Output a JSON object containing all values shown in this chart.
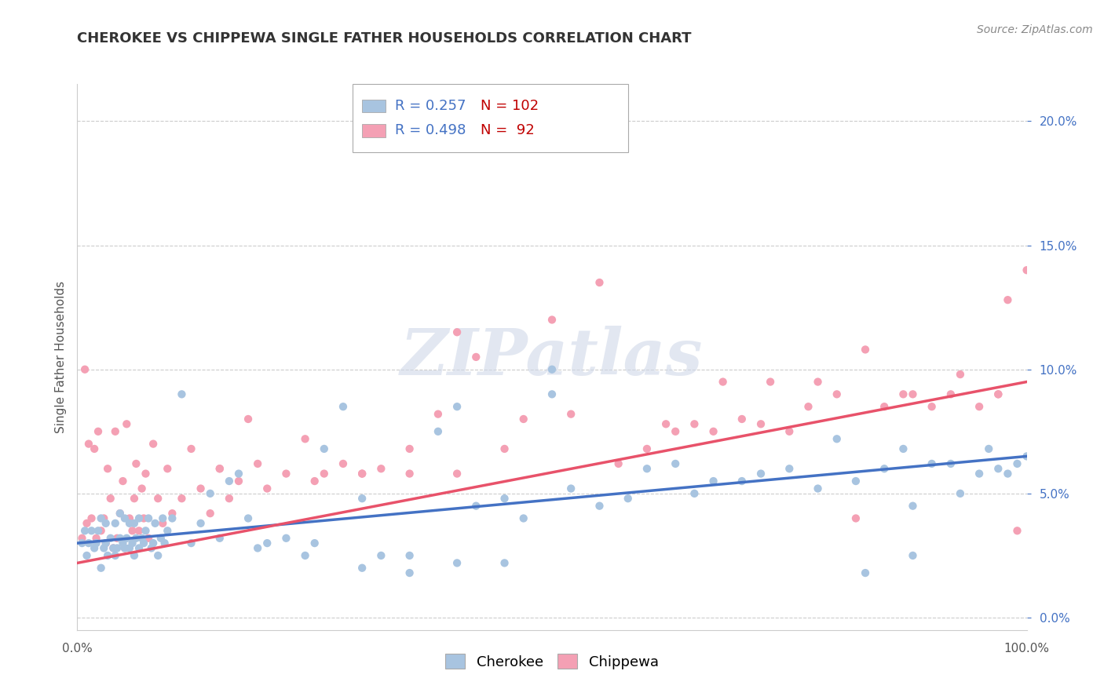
{
  "title": "CHEROKEE VS CHIPPEWA SINGLE FATHER HOUSEHOLDS CORRELATION CHART",
  "source": "Source: ZipAtlas.com",
  "ylabel": "Single Father Households",
  "xlim": [
    0,
    1
  ],
  "ylim": [
    -0.005,
    0.215
  ],
  "ytick_values": [
    0.0,
    0.05,
    0.1,
    0.15,
    0.2
  ],
  "cherokee_color": "#a8c4e0",
  "chippewa_color": "#f4a0b4",
  "cherokee_line_color": "#4472c4",
  "chippewa_line_color": "#e8526a",
  "cherokee_R": 0.257,
  "cherokee_N": 102,
  "chippewa_R": 0.498,
  "chippewa_N": 92,
  "watermark": "ZIPatlas",
  "title_color": "#333333",
  "legend_R_color": "#4472c4",
  "legend_N_color": "#c00000",
  "cherokee_scatter_x": [
    0.005,
    0.008,
    0.01,
    0.012,
    0.015,
    0.018,
    0.02,
    0.022,
    0.025,
    0.025,
    0.028,
    0.03,
    0.03,
    0.032,
    0.035,
    0.038,
    0.04,
    0.04,
    0.042,
    0.045,
    0.045,
    0.048,
    0.05,
    0.05,
    0.052,
    0.055,
    0.055,
    0.058,
    0.06,
    0.06,
    0.062,
    0.065,
    0.065,
    0.068,
    0.07,
    0.072,
    0.075,
    0.078,
    0.08,
    0.082,
    0.085,
    0.088,
    0.09,
    0.092,
    0.095,
    0.1,
    0.11,
    0.12,
    0.13,
    0.14,
    0.15,
    0.16,
    0.17,
    0.18,
    0.19,
    0.2,
    0.22,
    0.24,
    0.26,
    0.28,
    0.3,
    0.32,
    0.35,
    0.38,
    0.4,
    0.42,
    0.45,
    0.47,
    0.5,
    0.52,
    0.55,
    0.58,
    0.6,
    0.63,
    0.65,
    0.67,
    0.7,
    0.72,
    0.75,
    0.78,
    0.8,
    0.82,
    0.85,
    0.87,
    0.88,
    0.9,
    0.92,
    0.93,
    0.95,
    0.96,
    0.97,
    0.98,
    0.99,
    1.0,
    0.83,
    0.88,
    0.5,
    0.25,
    0.3,
    0.35,
    0.4,
    0.45
  ],
  "cherokee_scatter_y": [
    0.03,
    0.035,
    0.025,
    0.03,
    0.035,
    0.028,
    0.03,
    0.035,
    0.02,
    0.04,
    0.028,
    0.03,
    0.038,
    0.025,
    0.032,
    0.028,
    0.025,
    0.038,
    0.028,
    0.032,
    0.042,
    0.03,
    0.028,
    0.04,
    0.032,
    0.028,
    0.038,
    0.03,
    0.025,
    0.038,
    0.032,
    0.028,
    0.04,
    0.032,
    0.03,
    0.035,
    0.04,
    0.028,
    0.03,
    0.038,
    0.025,
    0.032,
    0.04,
    0.03,
    0.035,
    0.04,
    0.09,
    0.03,
    0.038,
    0.05,
    0.032,
    0.055,
    0.058,
    0.04,
    0.028,
    0.03,
    0.032,
    0.025,
    0.068,
    0.085,
    0.048,
    0.025,
    0.025,
    0.075,
    0.085,
    0.045,
    0.048,
    0.04,
    0.09,
    0.052,
    0.045,
    0.048,
    0.06,
    0.062,
    0.05,
    0.055,
    0.055,
    0.058,
    0.06,
    0.052,
    0.072,
    0.055,
    0.06,
    0.068,
    0.045,
    0.062,
    0.062,
    0.05,
    0.058,
    0.068,
    0.06,
    0.058,
    0.062,
    0.065,
    0.018,
    0.025,
    0.1,
    0.03,
    0.02,
    0.018,
    0.022,
    0.022
  ],
  "chippewa_scatter_x": [
    0.005,
    0.008,
    0.01,
    0.012,
    0.015,
    0.018,
    0.02,
    0.022,
    0.025,
    0.028,
    0.03,
    0.032,
    0.035,
    0.038,
    0.04,
    0.042,
    0.045,
    0.048,
    0.05,
    0.052,
    0.055,
    0.058,
    0.06,
    0.062,
    0.065,
    0.068,
    0.07,
    0.072,
    0.075,
    0.08,
    0.085,
    0.09,
    0.095,
    0.1,
    0.11,
    0.12,
    0.13,
    0.14,
    0.15,
    0.16,
    0.17,
    0.18,
    0.19,
    0.2,
    0.22,
    0.24,
    0.26,
    0.28,
    0.3,
    0.32,
    0.35,
    0.38,
    0.4,
    0.45,
    0.5,
    0.55,
    0.6,
    0.63,
    0.65,
    0.68,
    0.7,
    0.73,
    0.75,
    0.78,
    0.8,
    0.83,
    0.85,
    0.88,
    0.9,
    0.93,
    0.95,
    0.97,
    0.98,
    0.99,
    1.0,
    0.42,
    0.47,
    0.52,
    0.57,
    0.62,
    0.67,
    0.72,
    0.77,
    0.82,
    0.87,
    0.92,
    0.97,
    0.15,
    0.25,
    0.3,
    0.35,
    0.4
  ],
  "chippewa_scatter_y": [
    0.032,
    0.1,
    0.038,
    0.07,
    0.04,
    0.068,
    0.032,
    0.075,
    0.035,
    0.04,
    0.03,
    0.06,
    0.048,
    0.028,
    0.075,
    0.032,
    0.042,
    0.055,
    0.028,
    0.078,
    0.04,
    0.035,
    0.048,
    0.062,
    0.035,
    0.052,
    0.04,
    0.058,
    0.032,
    0.07,
    0.048,
    0.038,
    0.06,
    0.042,
    0.048,
    0.068,
    0.052,
    0.042,
    0.06,
    0.048,
    0.055,
    0.08,
    0.062,
    0.052,
    0.058,
    0.072,
    0.058,
    0.062,
    0.058,
    0.06,
    0.068,
    0.082,
    0.115,
    0.068,
    0.12,
    0.135,
    0.068,
    0.075,
    0.078,
    0.095,
    0.08,
    0.095,
    0.075,
    0.095,
    0.09,
    0.108,
    0.085,
    0.09,
    0.085,
    0.098,
    0.085,
    0.09,
    0.128,
    0.035,
    0.14,
    0.105,
    0.08,
    0.082,
    0.062,
    0.078,
    0.075,
    0.078,
    0.085,
    0.04,
    0.09,
    0.09,
    0.09,
    0.06,
    0.055,
    0.058,
    0.058,
    0.058
  ],
  "cherokee_trend_x": [
    0.0,
    1.0
  ],
  "cherokee_trend_y": [
    0.03,
    0.065
  ],
  "chippewa_trend_x": [
    0.0,
    1.0
  ],
  "chippewa_trend_y": [
    0.022,
    0.095
  ]
}
